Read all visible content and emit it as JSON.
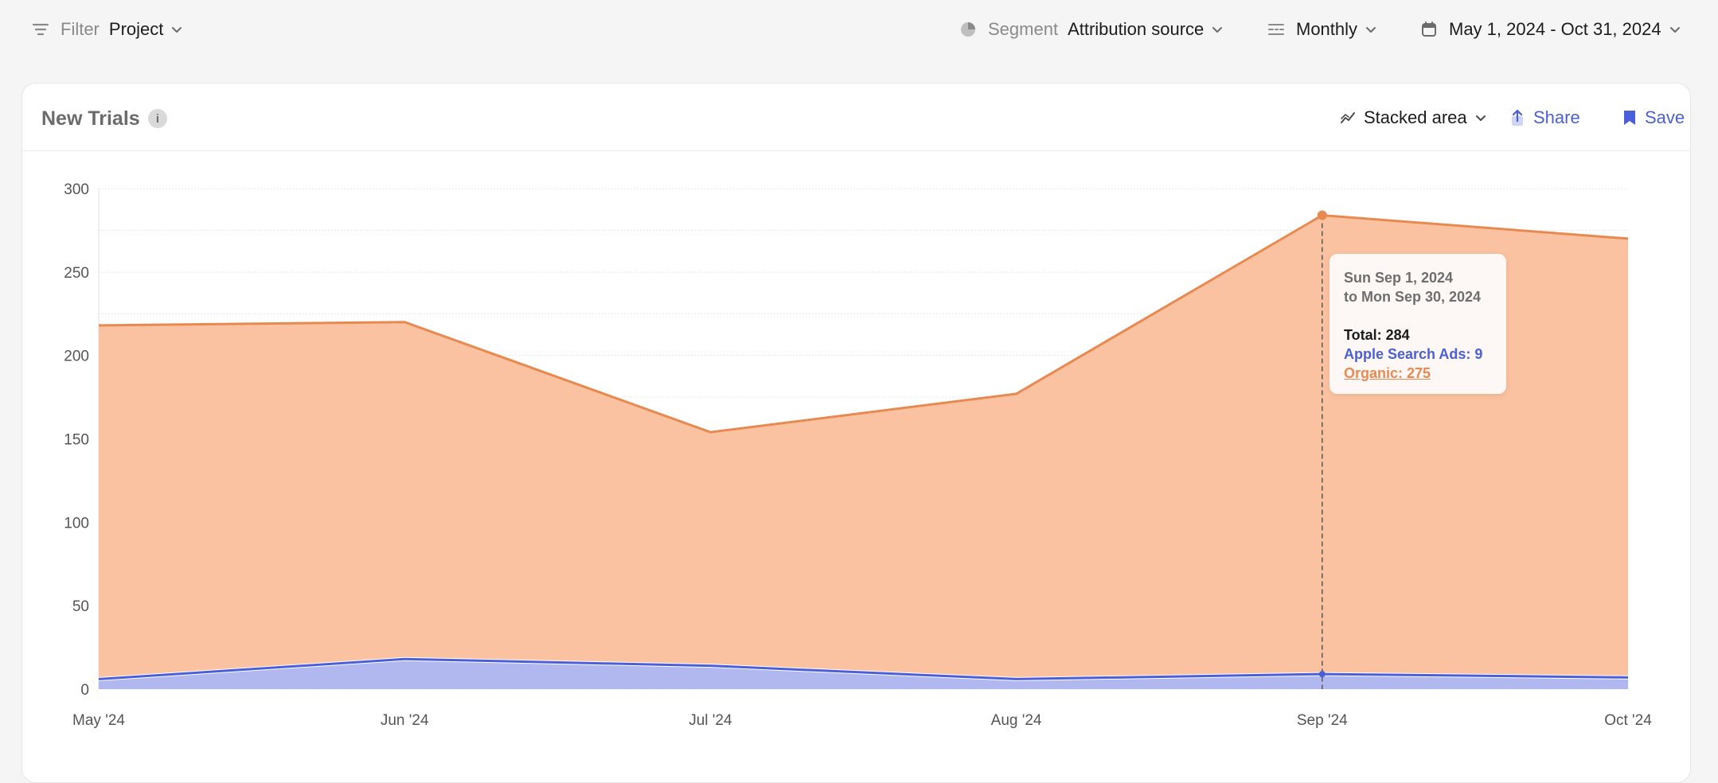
{
  "topbar": {
    "filter_label": "Filter",
    "filter_value": "Project",
    "segment_label": "Segment",
    "segment_value": "Attribution source",
    "interval_value": "Monthly",
    "date_range": "May 1, 2024 - Oct 31, 2024"
  },
  "card": {
    "title": "New Trials",
    "chart_type_label": "Stacked area",
    "share_label": "Share",
    "save_label": "Save"
  },
  "tooltip": {
    "line1": "Sun Sep 1, 2024",
    "line2": "to Mon Sep 30, 2024",
    "total": "Total: 284",
    "apple": "Apple Search Ads: 9",
    "organic": "Organic: 275"
  },
  "colors": {
    "organic_fill": "#fbc2a1",
    "organic_line": "#e88a50",
    "apple_fill": "#b0b8ef",
    "apple_line": "#4a5fd9",
    "accent": "#4a5fd9"
  },
  "icons": {
    "filter": "filter-lines-icon",
    "segment": "pie-icon",
    "interval": "interval-icon",
    "date": "calendar-icon",
    "chart_type": "line-chart-icon",
    "share": "share-icon",
    "save": "bookmark-icon",
    "info": "info-icon"
  },
  "chart_data": {
    "type": "area",
    "stacked": true,
    "categories": [
      "May '24",
      "Jun '24",
      "Jul '24",
      "Aug '24",
      "Sep '24",
      "Oct '24"
    ],
    "series": [
      {
        "name": "Apple Search Ads",
        "values": [
          6,
          18,
          14,
          6,
          9,
          7
        ]
      },
      {
        "name": "Organic",
        "values": [
          212,
          202,
          140,
          171,
          275,
          263
        ]
      }
    ],
    "totals": [
      218,
      220,
      154,
      177,
      284,
      270
    ],
    "ylim": [
      0,
      300
    ],
    "yticks": [
      0,
      50,
      100,
      150,
      200,
      250,
      300
    ],
    "grid": true,
    "highlight_category": "Sep '24"
  }
}
